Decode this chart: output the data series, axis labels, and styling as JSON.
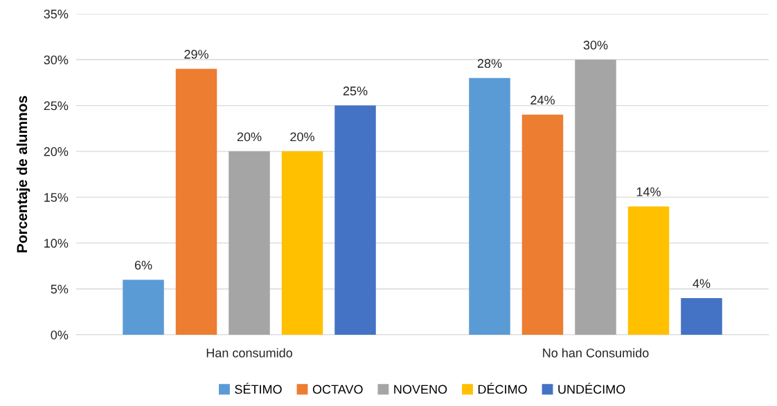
{
  "chart_data": {
    "type": "bar",
    "ylabel": "Porcentaje de alumnos",
    "categories": [
      "Han consumido",
      "No han Consumido"
    ],
    "series": [
      {
        "name": "SÉTIMO",
        "color": "#5b9bd5",
        "values": [
          6,
          28
        ],
        "value_labels": [
          "6%",
          "28%"
        ]
      },
      {
        "name": "OCTAVO",
        "color": "#ed7d31",
        "values": [
          29,
          24
        ],
        "value_labels": [
          "29%",
          "24%"
        ]
      },
      {
        "name": "NOVENO",
        "color": "#a5a5a5",
        "values": [
          20,
          30
        ],
        "value_labels": [
          "20%",
          "30%"
        ]
      },
      {
        "name": "DÉCIMO",
        "color": "#ffc000",
        "values": [
          20,
          14
        ],
        "value_labels": [
          "20%",
          "14%"
        ]
      },
      {
        "name": "UNDÉCIMO",
        "color": "#4472c4",
        "values": [
          25,
          4
        ],
        "value_labels": [
          "25%",
          "4%"
        ]
      }
    ],
    "ylim": [
      0,
      35
    ],
    "yticks": [
      {
        "value": 0,
        "label": "0%"
      },
      {
        "value": 5,
        "label": "5%"
      },
      {
        "value": 10,
        "label": "10%"
      },
      {
        "value": 15,
        "label": "15%"
      },
      {
        "value": 20,
        "label": "20%"
      },
      {
        "value": 25,
        "label": "25%"
      },
      {
        "value": 30,
        "label": "30%"
      },
      {
        "value": 35,
        "label": "35%"
      }
    ],
    "grid": "y",
    "legend": "bottom"
  }
}
